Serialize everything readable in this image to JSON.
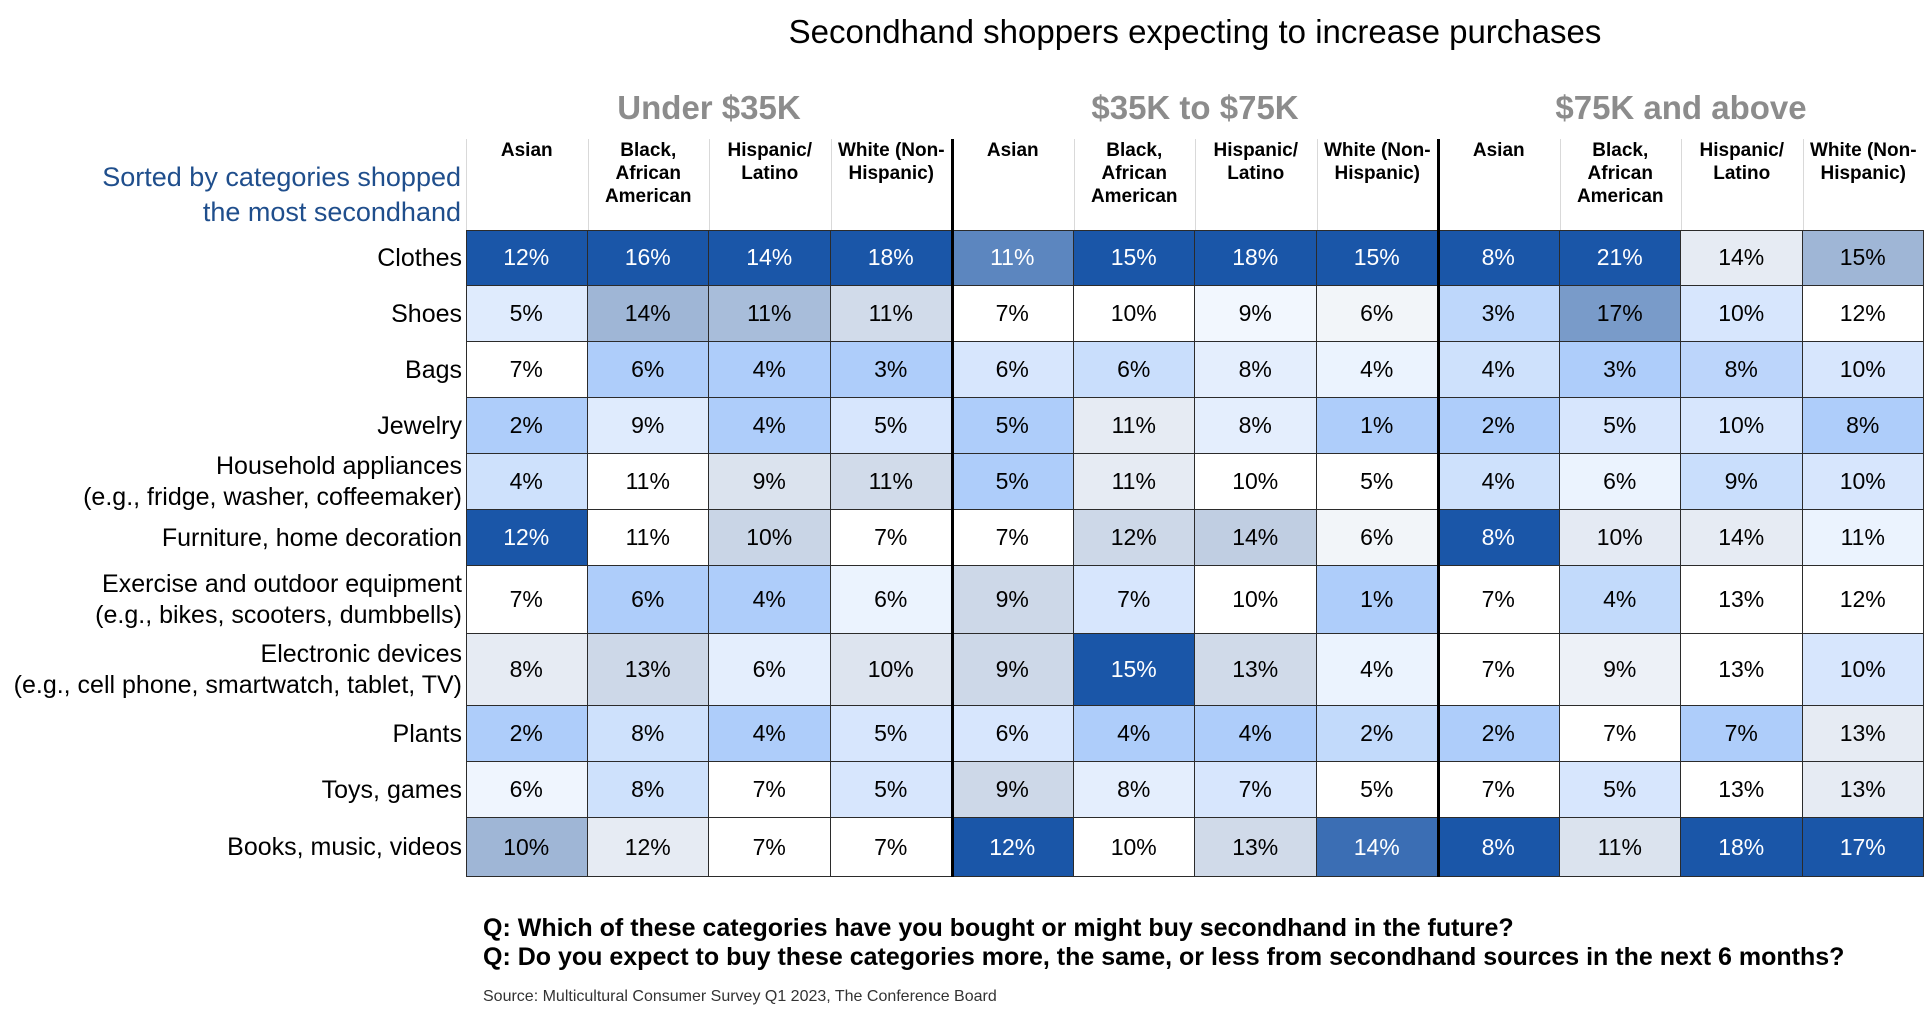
{
  "chart_data": {
    "type": "heatmap",
    "title": "Secondhand shoppers expecting to increase purchases",
    "row_header": "Sorted by categories shopped\nthe most secondhand",
    "groups": [
      "Under $35K",
      "$35K to $75K",
      "$75K and above"
    ],
    "subgroups": [
      "Asian",
      "Black,\nAfrican\nAmerican",
      "Hispanic/\nLatino",
      "White (Non-\nHispanic)"
    ],
    "rows": [
      "Clothes",
      "Shoes",
      "Bags",
      "Jewelry",
      "Household appliances\n(e.g., fridge, washer, coffeemaker)",
      "Furniture, home decoration",
      "Exercise and outdoor equipment\n(e.g., bikes, scooters, dumbbells)",
      "Electronic devices\n(e.g., cell phone, smartwatch, tablet, TV)",
      "Plants",
      "Toys, games",
      "Books, music, videos"
    ],
    "values": [
      [
        12,
        16,
        14,
        18,
        11,
        15,
        18,
        15,
        8,
        21,
        14,
        15
      ],
      [
        5,
        14,
        11,
        11,
        7,
        10,
        9,
        6,
        3,
        17,
        10,
        12
      ],
      [
        7,
        6,
        4,
        3,
        6,
        6,
        8,
        4,
        4,
        3,
        8,
        10
      ],
      [
        2,
        9,
        4,
        5,
        5,
        11,
        8,
        1,
        2,
        5,
        10,
        8
      ],
      [
        4,
        11,
        9,
        11,
        5,
        11,
        10,
        5,
        4,
        6,
        9,
        10
      ],
      [
        12,
        11,
        10,
        7,
        7,
        12,
        14,
        6,
        8,
        10,
        14,
        11
      ],
      [
        7,
        6,
        4,
        6,
        9,
        7,
        10,
        1,
        7,
        4,
        13,
        12
      ],
      [
        8,
        13,
        6,
        10,
        9,
        15,
        13,
        4,
        7,
        9,
        13,
        10
      ],
      [
        2,
        8,
        4,
        5,
        6,
        4,
        4,
        2,
        2,
        7,
        7,
        13
      ],
      [
        6,
        8,
        7,
        5,
        9,
        8,
        7,
        5,
        7,
        5,
        13,
        13
      ],
      [
        10,
        12,
        7,
        7,
        12,
        10,
        13,
        14,
        8,
        11,
        18,
        17
      ]
    ],
    "unit": "%"
  },
  "notes": {
    "q1": "Q: Which of these categories have you bought or might buy secondhand in the future?",
    "q2": "Q: Do you expect to buy these categories more, the same, or less from secondhand sources in the next 6 months?",
    "source": "Source: Multicultural Consumer Survey Q1 2023, The Conference Board"
  },
  "colors": {
    "high": "#1a56a8",
    "low_blue": "#aecdfa",
    "neutral": "#ffffff",
    "row_header_text": "#1f4e8c",
    "group_title_text": "#8c8c8c"
  }
}
